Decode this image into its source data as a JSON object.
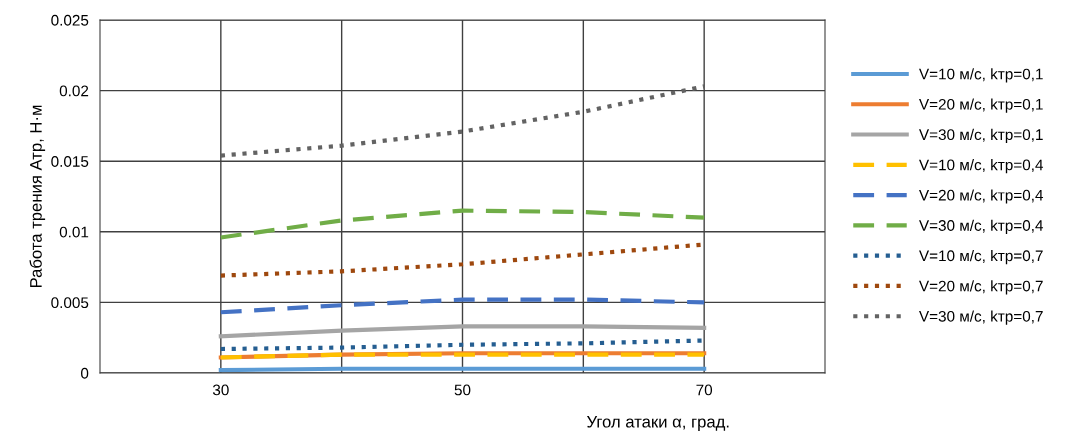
{
  "chart_data": {
    "type": "line",
    "xlabel": "Угол атаки α, град.",
    "ylabel": "Работа трения Атр, Н·м",
    "x": [
      30,
      40,
      50,
      60,
      70
    ],
    "xlim": [
      20,
      80
    ],
    "xticks": [
      30,
      {
        "value": 40,
        "label": null
      },
      50,
      {
        "value": 60,
        "label": null
      },
      70
    ],
    "ylim": [
      0,
      0.025
    ],
    "yticks": [
      0,
      0.005,
      0.01,
      0.015,
      0.02,
      0.025
    ],
    "grid": true,
    "legend": "right",
    "marker": "none",
    "series": [
      {
        "name": "V=10 м/с, kтр=0,1",
        "color": "#5b9bd5",
        "line_style": "solid",
        "values": [
          0.0002,
          0.0003,
          0.0003,
          0.0003,
          0.0003
        ]
      },
      {
        "name": "V=20 м/с, kтр=0,1",
        "color": "#ed7d31",
        "line_style": "solid",
        "values": [
          0.0011,
          0.0013,
          0.0014,
          0.0014,
          0.0014
        ]
      },
      {
        "name": "V=30 м/с, kтр=0,1",
        "color": "#a5a5a5",
        "line_style": "solid",
        "values": [
          0.0026,
          0.003,
          0.0033,
          0.0033,
          0.0032
        ]
      },
      {
        "name": "V=10 м/с, kтр=0,4",
        "color": "#ffc000",
        "line_style": "dashed",
        "values": [
          0.0011,
          0.0013,
          0.0013,
          0.0013,
          0.0013
        ]
      },
      {
        "name": "V=20 м/с, kтр=0,4",
        "color": "#4472c4",
        "line_style": "dashed",
        "values": [
          0.0043,
          0.0048,
          0.0052,
          0.0052,
          0.005
        ]
      },
      {
        "name": "V=30 м/с, kтр=0,4",
        "color": "#70ad47",
        "line_style": "dashed",
        "values": [
          0.0096,
          0.0108,
          0.0115,
          0.0114,
          0.011
        ]
      },
      {
        "name": "V=10 м/с, kтр=0,7",
        "color": "#255e91",
        "line_style": "dotted",
        "values": [
          0.0017,
          0.0018,
          0.002,
          0.0021,
          0.0023
        ]
      },
      {
        "name": "V=20 м/с, kтр=0,7",
        "color": "#9e480e",
        "line_style": "dotted",
        "values": [
          0.0069,
          0.0072,
          0.0077,
          0.0084,
          0.0091
        ]
      },
      {
        "name": "V=30 м/с, kтр=0,7",
        "color": "#636363",
        "line_style": "dotted",
        "values": [
          0.0154,
          0.0161,
          0.0171,
          0.0185,
          0.0203
        ]
      }
    ]
  }
}
